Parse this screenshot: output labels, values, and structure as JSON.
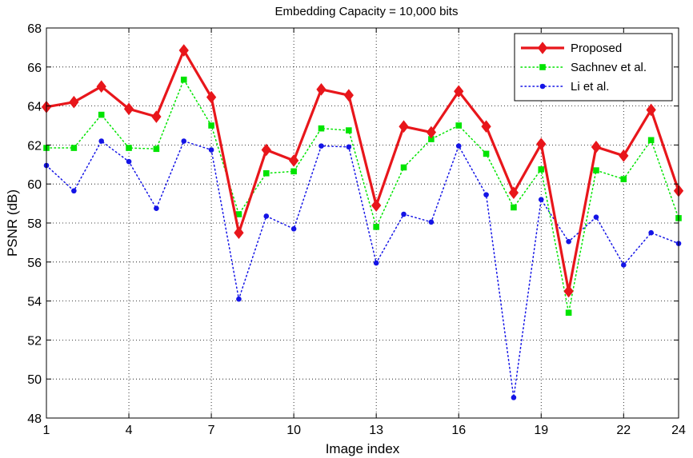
{
  "chart_data": {
    "type": "line",
    "title": "Embedding Capacity = 10,000 bits",
    "xlabel": "Image index",
    "ylabel": "PSNR (dB)",
    "xlim": [
      1,
      24
    ],
    "ylim": [
      48,
      68
    ],
    "xticks": [
      1,
      4,
      7,
      10,
      13,
      16,
      19,
      22,
      24
    ],
    "yticks": [
      48,
      50,
      52,
      54,
      56,
      58,
      60,
      62,
      64,
      66,
      68
    ],
    "grid": true,
    "legend_position": "top-right",
    "x": [
      1,
      2,
      3,
      4,
      5,
      6,
      7,
      8,
      9,
      10,
      11,
      12,
      13,
      14,
      15,
      16,
      17,
      18,
      19,
      20,
      21,
      22,
      23,
      24
    ],
    "series": [
      {
        "name": "Proposed",
        "color": "#e8161b",
        "style": "solid",
        "marker": "diamond",
        "values": [
          63.95,
          64.2,
          65.0,
          63.85,
          63.45,
          66.85,
          64.45,
          57.5,
          61.75,
          61.2,
          64.85,
          64.55,
          58.9,
          62.95,
          62.65,
          64.75,
          62.95,
          59.55,
          62.05,
          54.5,
          61.9,
          61.45,
          63.8,
          59.65
        ]
      },
      {
        "name": "Sachnev et al.",
        "color": "#00e400",
        "style": "dotted",
        "marker": "square",
        "values": [
          61.85,
          61.85,
          63.55,
          61.85,
          61.8,
          65.35,
          63.0,
          58.45,
          60.55,
          60.65,
          62.85,
          62.75,
          57.8,
          60.85,
          62.3,
          63.0,
          61.55,
          58.8,
          60.75,
          53.4,
          60.7,
          60.25,
          62.25,
          58.25
        ]
      },
      {
        "name": "Li et al.",
        "color": "#1414e6",
        "style": "dotted",
        "marker": "circle",
        "values": [
          60.95,
          59.65,
          62.2,
          61.15,
          58.75,
          62.2,
          61.75,
          54.1,
          58.35,
          57.7,
          61.95,
          61.9,
          55.95,
          58.45,
          58.05,
          61.95,
          59.45,
          49.05,
          59.2,
          57.05,
          58.3,
          55.85,
          57.5,
          56.95
        ]
      }
    ]
  }
}
